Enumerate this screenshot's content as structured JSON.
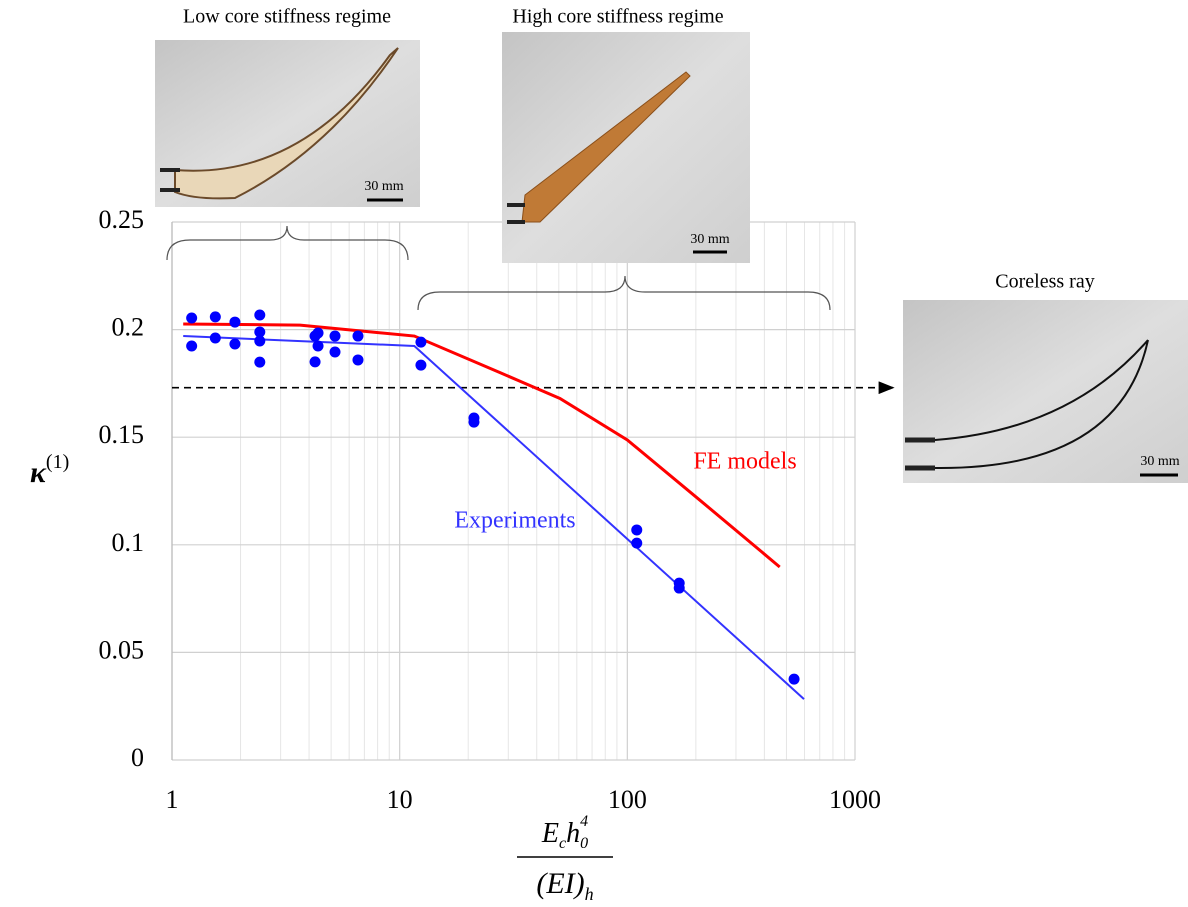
{
  "chart_data": {
    "type": "scatter",
    "xscale": "log",
    "grid": true,
    "xlim": [
      1,
      1000
    ],
    "xticks": [
      1,
      10,
      100,
      1000
    ],
    "ylim": [
      0,
      0.25
    ],
    "yticks": [
      0,
      0.05,
      0.1,
      0.15,
      0.2,
      0.25
    ],
    "ylabel": {
      "base": "κ",
      "sup": "(1)"
    },
    "xlabel": {
      "numerator": {
        "base1": "E",
        "sub1": "c",
        "base2": "h",
        "sub2": "0",
        "sup2": "4"
      },
      "denominator": {
        "base": "(EI)",
        "sub": "h"
      }
    },
    "points": {
      "color": "#0000ff",
      "x": [
        1.22,
        1.22,
        1.55,
        1.55,
        1.89,
        1.89,
        2.43,
        2.43,
        2.43,
        2.43,
        4.25,
        4.25,
        4.38,
        4.38,
        5.2,
        5.2,
        6.56,
        6.56,
        12.4,
        12.4,
        21.2,
        21.2,
        110,
        110,
        169,
        169,
        540
      ],
      "values": [
        0.2054,
        0.1924,
        0.2059,
        0.1961,
        0.2035,
        0.1933,
        0.2068,
        0.1989,
        0.1947,
        0.1849,
        0.197,
        0.185,
        0.1984,
        0.1924,
        0.197,
        0.1896,
        0.197,
        0.1859,
        0.1942,
        0.1835,
        0.1589,
        0.157,
        0.1069,
        0.1008,
        0.0822,
        0.0799,
        0.0376
      ]
    },
    "series": [
      {
        "name": "Experiments",
        "color": "#3333ff",
        "x": [
          1.12,
          11.6,
          597
        ],
        "values": [
          0.197,
          0.1924,
          0.0283
        ]
      },
      {
        "name": "FE models",
        "color": "#ff0000",
        "x": [
          1.12,
          3.65,
          11.6,
          27.6,
          50.6,
          100,
          208,
          467
        ],
        "values": [
          0.2026,
          0.2021,
          0.197,
          0.18,
          0.168,
          0.1487,
          0.1208,
          0.0897
        ]
      }
    ],
    "reference_line": {
      "value": 0.173
    },
    "images": [
      {
        "title": "Low core stiffness regime",
        "scale_label": "30 mm"
      },
      {
        "title": "High core stiffness regime",
        "scale_label": "30 mm"
      },
      {
        "title": "Coreless ray",
        "scale_label": "30 mm"
      }
    ]
  }
}
